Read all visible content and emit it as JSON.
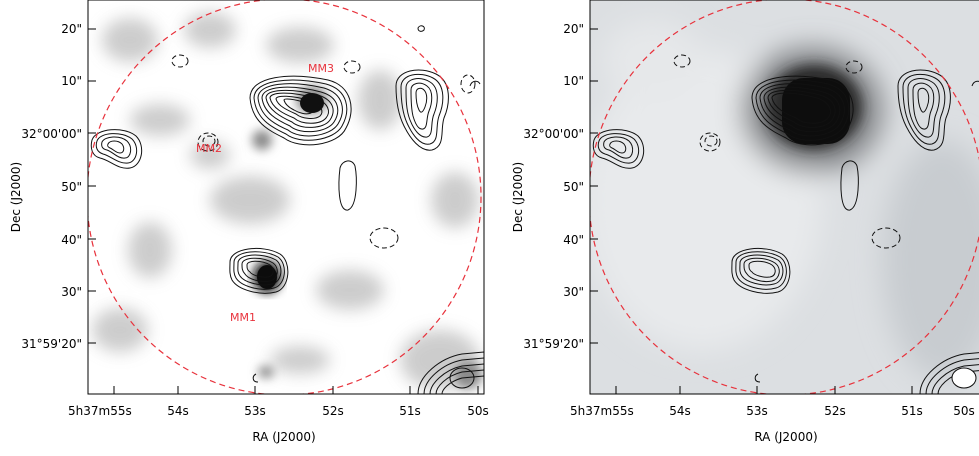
{
  "panels": [
    {
      "id": "left",
      "image_style": "light-grey-noise-background",
      "labels": [
        {
          "text": "MM3",
          "color": "#e8323c"
        },
        {
          "text": "MM2",
          "color": "#e8323c"
        },
        {
          "text": "MM1",
          "color": "#e8323c"
        }
      ]
    },
    {
      "id": "right",
      "image_style": "grey-smooth-background",
      "labels": []
    }
  ],
  "axes": {
    "xlabel": "RA (J2000)",
    "ylabel": "Dec (J2000)",
    "x_ticks": [
      {
        "h": "5",
        "m": "37",
        "s": "55",
        "text": "5h37m55s"
      },
      {
        "s": "54",
        "text": "54s"
      },
      {
        "s": "53",
        "text": "53s"
      },
      {
        "s": "52",
        "text": "52s"
      },
      {
        "s": "51",
        "text": "51s"
      },
      {
        "s": "50",
        "text": "50s"
      }
    ],
    "y_ticks": [
      {
        "text": "20\""
      },
      {
        "text": "10\""
      },
      {
        "deg": "32",
        "rest": "00'00\"",
        "text": "32°00'00\""
      },
      {
        "text": "50\""
      },
      {
        "text": "40\""
      },
      {
        "text": "30\""
      },
      {
        "deg": "31",
        "rest": "59'20\"",
        "text": "31°59'20\""
      }
    ]
  },
  "colors": {
    "primary_beam_circle": "#e8323c",
    "source_label": "#e8323c",
    "contours": "#111111"
  }
}
